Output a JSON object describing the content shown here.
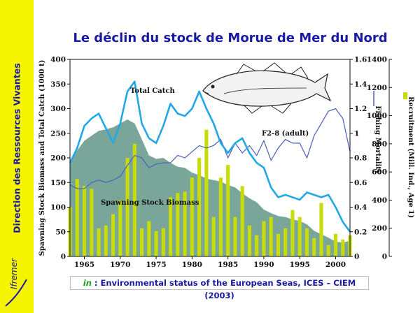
{
  "sidebar": {
    "title": "Direction des Ressources Vivantes",
    "logo_text": "Ifremer"
  },
  "slide": {
    "title": "Le déclin du stock de Morue de Mer du Nord"
  },
  "source": {
    "prefix": "in",
    "text": " : Environmental status of the European Seas, ICES – CIEM (2003)"
  },
  "colors": {
    "biomass": "#7aa69a",
    "catch": "#22a8e6",
    "fishing": "#4a62b8",
    "recruitment": "#c8dc0a",
    "plot_bg": "#ffffff",
    "sidebar": "#f5f500",
    "title": "#1a1aa0"
  },
  "chart_data": {
    "type": "combo",
    "x": [
      1963,
      1964,
      1965,
      1966,
      1967,
      1968,
      1969,
      1970,
      1971,
      1972,
      1973,
      1974,
      1975,
      1976,
      1977,
      1978,
      1979,
      1980,
      1981,
      1982,
      1983,
      1984,
      1985,
      1986,
      1987,
      1988,
      1989,
      1990,
      1991,
      1992,
      1993,
      1994,
      1995,
      1996,
      1997,
      1998,
      1999,
      2000,
      2001,
      2002
    ],
    "xticks": [
      1965,
      1970,
      1975,
      1980,
      1985,
      1990,
      1995,
      2000
    ],
    "xlim": [
      1963,
      2002
    ],
    "left_axis": {
      "label": "Spawning Stock Biomass and Total Catch (1000 t)",
      "ylim": [
        0,
        400
      ],
      "ticks": [
        0,
        50,
        100,
        150,
        200,
        250,
        300,
        350,
        400
      ]
    },
    "mid_axis": {
      "label": "Fishing Mortality",
      "ylim": [
        0,
        1.6
      ],
      "ticks": [
        "0",
        "0.2",
        "0.4",
        "0.6",
        "0.8",
        "1",
        "1.2",
        "1.4",
        "1.6"
      ]
    },
    "right_axis": {
      "label": "Recruitment (Mill. Ind., Age 1)",
      "ylim": [
        0,
        1400
      ],
      "ticks": [
        0,
        200,
        400,
        600,
        800,
        1000,
        1200,
        1400
      ]
    },
    "series": [
      {
        "name": "Spawning Stock Biomass",
        "type": "area",
        "axis": "left",
        "values": [
          195,
          215,
          235,
          245,
          255,
          258,
          262,
          270,
          278,
          270,
          238,
          205,
          198,
          200,
          190,
          182,
          180,
          170,
          165,
          158,
          155,
          152,
          145,
          140,
          128,
          118,
          110,
          95,
          88,
          82,
          80,
          75,
          72,
          65,
          52,
          45,
          38,
          30,
          28,
          32
        ]
      },
      {
        "name": "Total Catch",
        "type": "line",
        "axis": "left",
        "values": [
          190,
          220,
          265,
          280,
          290,
          260,
          230,
          270,
          335,
          355,
          270,
          240,
          230,
          265,
          310,
          290,
          285,
          300,
          335,
          300,
          270,
          230,
          210,
          230,
          240,
          210,
          190,
          180,
          140,
          120,
          125,
          120,
          115,
          130,
          125,
          120,
          125,
          100,
          70,
          50
        ]
      },
      {
        "name": "F2-8 (adult)",
        "type": "line",
        "axis": "mid",
        "values": [
          0.58,
          0.55,
          0.55,
          0.6,
          0.62,
          0.6,
          0.62,
          0.65,
          0.74,
          0.82,
          0.8,
          0.72,
          0.75,
          0.76,
          0.76,
          0.82,
          0.8,
          0.85,
          0.9,
          0.88,
          0.9,
          0.95,
          0.8,
          0.92,
          0.84,
          0.9,
          0.82,
          0.94,
          0.78,
          0.88,
          0.95,
          0.92,
          0.92,
          0.8,
          0.98,
          1.08,
          1.18,
          1.2,
          1.12,
          0.85
        ]
      },
      {
        "name": "Recruitment",
        "type": "bar",
        "axis": "right",
        "values": [
          350,
          550,
          500,
          480,
          200,
          220,
          300,
          400,
          700,
          800,
          200,
          250,
          180,
          200,
          420,
          450,
          460,
          560,
          700,
          900,
          280,
          560,
          650,
          280,
          500,
          220,
          150,
          250,
          280,
          160,
          200,
          330,
          280,
          200,
          130,
          380,
          80,
          160,
          120,
          150
        ]
      }
    ],
    "annotations": [
      "Total Catch",
      "F2-8 (adult)",
      "Spawning Stock Biomass"
    ],
    "legend": "none"
  }
}
